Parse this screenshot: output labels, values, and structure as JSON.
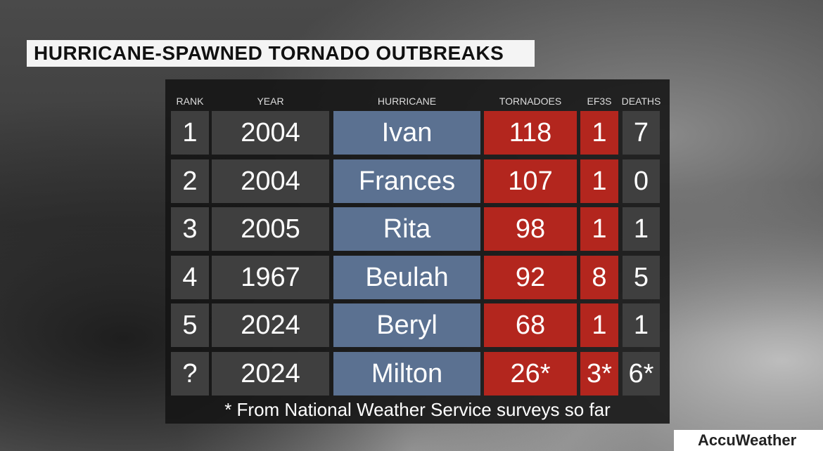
{
  "header": {
    "title": "HURRICANE-SPAWNED TORNADO OUTBREAKS"
  },
  "table": {
    "columns": [
      "RANK",
      "YEAR",
      "HURRICANE",
      "TORNADOES",
      "EF3S",
      "DEATHS"
    ],
    "rows": [
      [
        "1",
        "2004",
        "Ivan",
        "118",
        "1",
        "7"
      ],
      [
        "2",
        "2004",
        "Frances",
        "107",
        "1",
        "0"
      ],
      [
        "3",
        "2005",
        "Rita",
        "98",
        "1",
        "1"
      ],
      [
        "4",
        "1967",
        "Beulah",
        "92",
        "8",
        "5"
      ],
      [
        "5",
        "2024",
        "Beryl",
        "68",
        "1",
        "1"
      ],
      [
        "?",
        "2024",
        "Milton",
        "26*",
        "3*",
        "6*"
      ]
    ],
    "footnote": "* From National Weather Service surveys so far"
  },
  "logo": "AccuWeather"
}
